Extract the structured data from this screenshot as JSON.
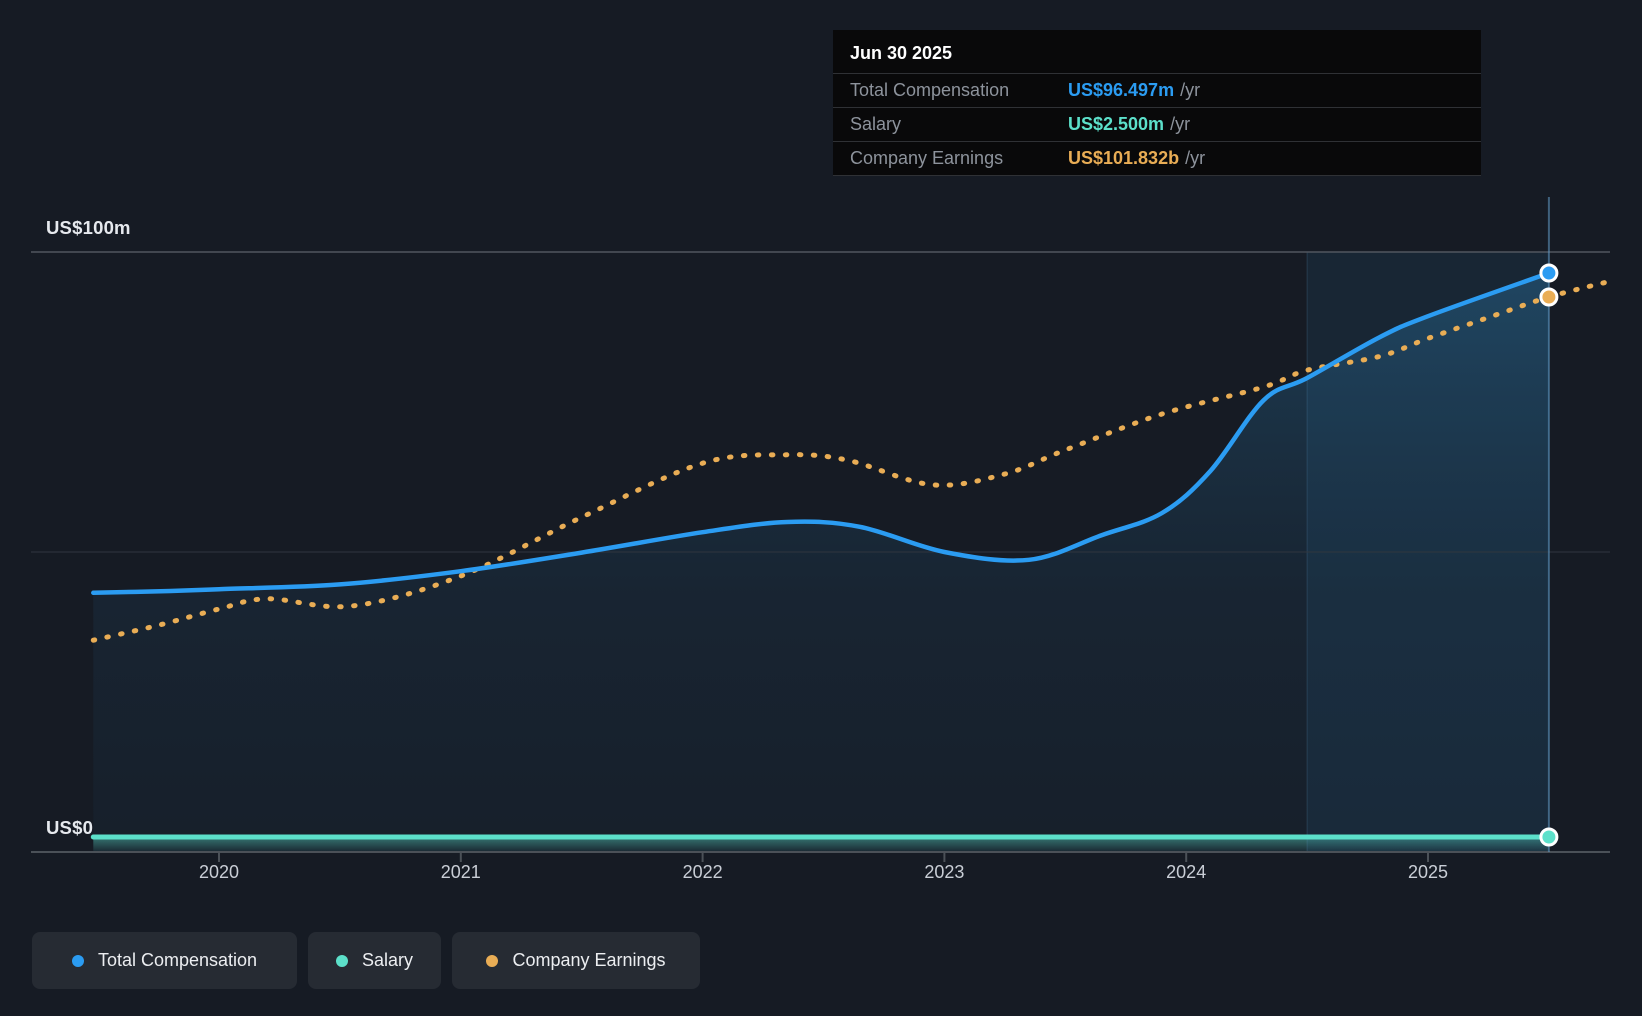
{
  "colors": {
    "background": "#161b24",
    "grid_strong": "#51565e",
    "grid_faint": "#30363f",
    "axis_line": "#4b5158",
    "total_compensation": "#2b9cf2",
    "salary": "#5ce0ca",
    "company_earnings": "#e9ad55",
    "highlight_band_fill": "rgba(45,140,200,0.10)",
    "crosshair": "rgba(98,155,198,0.55)",
    "tooltip_background": "#09090a",
    "tooltip_label_text": "#8d939c",
    "legend_pill_background": "#262b33"
  },
  "tooltip": {
    "date": "Jun 30 2025",
    "rows": [
      {
        "label": "Total Compensation",
        "value": "US$96.497m",
        "unit": "/yr",
        "series": "total_compensation"
      },
      {
        "label": "Salary",
        "value": "US$2.500m",
        "unit": "/yr",
        "series": "salary"
      },
      {
        "label": "Company Earnings",
        "value": "US$101.832b",
        "unit": "/yr",
        "series": "company_earnings"
      }
    ]
  },
  "legend": {
    "items": [
      {
        "series": "total_compensation",
        "label": "Total Compensation"
      },
      {
        "series": "salary",
        "label": "Salary"
      },
      {
        "series": "company_earnings",
        "label": "Company Earnings"
      }
    ]
  },
  "chart_data": {
    "type": "line",
    "x_axis": {
      "unit": "year",
      "range": [
        2019.48,
        2025.75
      ],
      "grid": false
    },
    "y_axis": {
      "unit": "US$m",
      "range": [
        0,
        100
      ],
      "gridlines": [
        100,
        50,
        0
      ]
    },
    "x_ticks": [
      {
        "value": 2020,
        "label": "2020"
      },
      {
        "value": 2021,
        "label": "2021"
      },
      {
        "value": 2022,
        "label": "2022"
      },
      {
        "value": 2023,
        "label": "2023"
      },
      {
        "value": 2024,
        "label": "2024"
      },
      {
        "value": 2025,
        "label": "2025"
      }
    ],
    "y_ticks": [
      {
        "value": 100,
        "label": "US$100m"
      },
      {
        "value": 0,
        "label": "US$0"
      }
    ],
    "highlight_band": {
      "from": 2024.5,
      "to": 2025.5
    },
    "cursor": {
      "x": 2025.5,
      "date": "Jun 30 2025",
      "markers": [
        {
          "series": "total_compensation",
          "v": 96.5
        },
        {
          "series": "company_earnings",
          "v": 92.5
        },
        {
          "series": "salary",
          "v": 2.5
        }
      ]
    },
    "series": [
      {
        "id": "total_compensation",
        "name": "Total Compensation",
        "color": "#2b9cf2",
        "style": "solid-line-with-area",
        "value_at_cursor": "US$96.497m /yr",
        "points": [
          [
            2019.48,
            43.2
          ],
          [
            2019.8,
            43.5
          ],
          [
            2020.0,
            43.8
          ],
          [
            2020.5,
            44.6
          ],
          [
            2021.0,
            46.8
          ],
          [
            2021.5,
            49.9
          ],
          [
            2022.0,
            53.3
          ],
          [
            2022.35,
            55.0
          ],
          [
            2022.65,
            54.2
          ],
          [
            2023.0,
            50.0
          ],
          [
            2023.35,
            48.7
          ],
          [
            2023.65,
            52.8
          ],
          [
            2023.9,
            56.5
          ],
          [
            2024.1,
            63.5
          ],
          [
            2024.32,
            75.3
          ],
          [
            2024.5,
            79.0
          ],
          [
            2024.8,
            85.8
          ],
          [
            2025.0,
            89.3
          ],
          [
            2025.5,
            96.5
          ]
        ]
      },
      {
        "id": "salary",
        "name": "Salary",
        "color": "#5ce0ca",
        "style": "solid-line-with-area",
        "value_at_cursor": "US$2.500m /yr",
        "points": [
          [
            2019.48,
            2.5
          ],
          [
            2025.5,
            2.5
          ]
        ]
      },
      {
        "id": "company_earnings",
        "name": "Company Earnings",
        "color": "#e9ad55",
        "style": "dotted-line",
        "value_at_cursor": "US$101.832b /yr",
        "note": "Plotted on an independent scale; point values are axis-equivalent positions in US$m. Actual value at cursor is US$101.832b.",
        "points": [
          [
            2019.48,
            35.3
          ],
          [
            2019.75,
            37.8
          ],
          [
            2020.0,
            40.5
          ],
          [
            2020.2,
            42.2
          ],
          [
            2020.55,
            41.0
          ],
          [
            2021.0,
            46.0
          ],
          [
            2021.5,
            55.8
          ],
          [
            2022.0,
            64.8
          ],
          [
            2022.35,
            66.2
          ],
          [
            2022.6,
            65.3
          ],
          [
            2022.95,
            61.2
          ],
          [
            2023.25,
            63.0
          ],
          [
            2023.5,
            67.0
          ],
          [
            2023.9,
            73.0
          ],
          [
            2024.32,
            77.5
          ],
          [
            2024.5,
            80.3
          ],
          [
            2024.8,
            82.6
          ],
          [
            2025.0,
            85.6
          ],
          [
            2025.28,
            89.5
          ],
          [
            2025.5,
            92.5
          ],
          [
            2025.74,
            95.0
          ]
        ]
      }
    ]
  }
}
